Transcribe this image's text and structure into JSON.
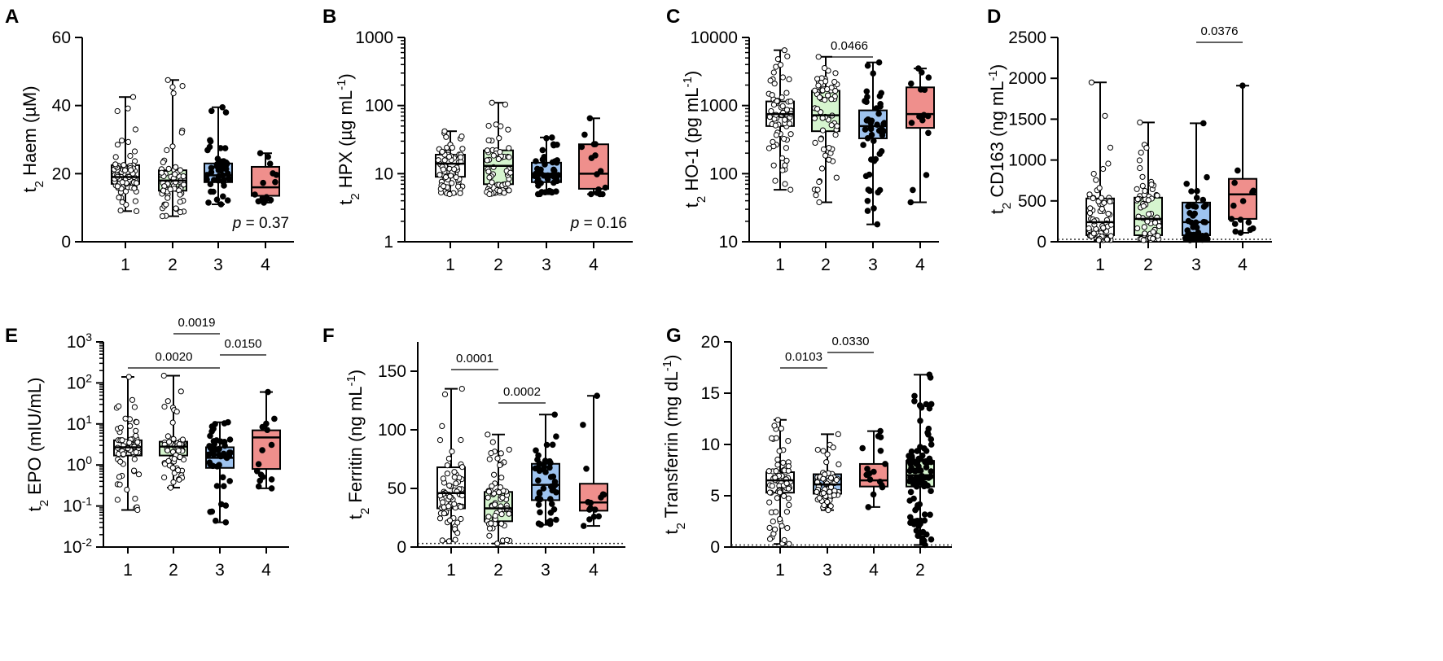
{
  "figure": {
    "colors": {
      "1": "#ffffff",
      "2": "#d6f5cf",
      "3": "#9ec3ef",
      "4": "#ef8f8c",
      "axis": "#000000"
    }
  },
  "chart_data": [
    {
      "panel": "A",
      "type": "box",
      "ylabel": {
        "pre": "t",
        "sub": "2",
        "post": " Haem (µM)"
      },
      "scale": "linear",
      "ylim": [
        0,
        60
      ],
      "yticks": [
        0,
        20,
        40,
        60
      ],
      "categories": [
        "1",
        "2",
        "3",
        "4"
      ],
      "groups": [
        {
          "name": "1",
          "min": 9,
          "q1": 17,
          "median": 19,
          "q3": 22.5,
          "max": 42.5,
          "n": 70,
          "filled": false
        },
        {
          "name": "2",
          "min": 7.5,
          "q1": 15,
          "median": 18,
          "q3": 21,
          "max": 47.5,
          "n": 65,
          "filled": false
        },
        {
          "name": "3",
          "min": 11,
          "q1": 17.5,
          "median": 19.5,
          "q3": 23,
          "max": 39.5,
          "n": 45,
          "filled": true
        },
        {
          "name": "4",
          "min": 11.5,
          "q1": 13.5,
          "median": 16,
          "q3": 22,
          "max": 26,
          "n": 13,
          "filled": true
        }
      ],
      "comparisons": [],
      "annotation": {
        "p_label": "p",
        "p_value": "= 0.37"
      }
    },
    {
      "panel": "B",
      "type": "box",
      "ylabel": {
        "pre": "t",
        "sub": "2",
        "post": " HPX (µg mL",
        "sup": "-1",
        "close": ")"
      },
      "scale": "log",
      "ylim": [
        1,
        1000
      ],
      "yticks": [
        1,
        10,
        100,
        1000
      ],
      "categories": [
        "1",
        "2",
        "3",
        "4"
      ],
      "groups": [
        {
          "name": "1",
          "min": 5,
          "q1": 9,
          "median": 14,
          "q3": 19,
          "max": 42,
          "n": 70,
          "filled": false
        },
        {
          "name": "2",
          "min": 5,
          "q1": 7,
          "median": 13,
          "q3": 22,
          "max": 110,
          "n": 65,
          "filled": false
        },
        {
          "name": "3",
          "min": 5,
          "q1": 7.5,
          "median": 10,
          "q3": 14.5,
          "max": 34,
          "n": 45,
          "filled": true
        },
        {
          "name": "4",
          "min": 5,
          "q1": 6,
          "median": 10,
          "q3": 27,
          "max": 65,
          "n": 13,
          "filled": true
        }
      ],
      "comparisons": [],
      "annotation": {
        "p_label": "p",
        "p_value": "= 0.16"
      }
    },
    {
      "panel": "C",
      "type": "box",
      "ylabel": {
        "pre": "t",
        "sub": "2",
        "post": " HO-1 (pg mL",
        "sup": "-1",
        "close": ")"
      },
      "scale": "log",
      "ylim": [
        10,
        10000
      ],
      "yticks": [
        10,
        100,
        1000,
        10000
      ],
      "categories": [
        "1",
        "2",
        "3",
        "4"
      ],
      "groups": [
        {
          "name": "1",
          "min": 58,
          "q1": 500,
          "median": 750,
          "q3": 1150,
          "max": 6500,
          "n": 70,
          "filled": false
        },
        {
          "name": "2",
          "min": 38,
          "q1": 420,
          "median": 720,
          "q3": 1650,
          "max": 5200,
          "n": 65,
          "filled": false
        },
        {
          "name": "3",
          "min": 18,
          "q1": 330,
          "median": 500,
          "q3": 850,
          "max": 4300,
          "n": 45,
          "filled": true
        },
        {
          "name": "4",
          "min": 38,
          "q1": 470,
          "median": 750,
          "q3": 1850,
          "max": 3500,
          "n": 13,
          "filled": true
        }
      ],
      "comparisons": [
        {
          "from": 1,
          "to": 2,
          "label": "0.0466",
          "level": 0
        }
      ],
      "annotation": null
    },
    {
      "panel": "D",
      "type": "box",
      "ylabel": {
        "pre": "t",
        "sub": "2",
        "post": " CD163 (ng mL",
        "sup": "-1",
        "close": ")"
      },
      "scale": "linear",
      "ylim": [
        0,
        2500
      ],
      "yticks": [
        0,
        500,
        1000,
        1500,
        2000,
        2500
      ],
      "categories": [
        "1",
        "2",
        "3",
        "4"
      ],
      "groups": [
        {
          "name": "1",
          "min": 20,
          "q1": 80,
          "median": 240,
          "q3": 530,
          "max": 1950,
          "n": 70,
          "filled": false
        },
        {
          "name": "2",
          "min": 20,
          "q1": 80,
          "median": 280,
          "q3": 540,
          "max": 1460,
          "n": 65,
          "filled": false
        },
        {
          "name": "3",
          "min": 20,
          "q1": 80,
          "median": 240,
          "q3": 480,
          "max": 1450,
          "n": 45,
          "filled": true
        },
        {
          "name": "4",
          "min": 110,
          "q1": 280,
          "median": 580,
          "q3": 770,
          "max": 1910,
          "n": 13,
          "filled": true
        }
      ],
      "comparisons": [
        {
          "from": 2,
          "to": 3,
          "label": "0.0376",
          "level": 0
        }
      ],
      "dotted_baseline": 30,
      "annotation": null
    },
    {
      "panel": "E",
      "type": "box",
      "ylabel": {
        "pre": "t",
        "sub": "2",
        "post": " EPO (mIU/mL)"
      },
      "scale": "log",
      "ylim": [
        0.01,
        1000
      ],
      "yticks": [
        0.01,
        0.1,
        1,
        10,
        100,
        1000
      ],
      "ytick_labels": [
        {
          "base": "10",
          "exp": "-2"
        },
        {
          "base": "10",
          "exp": "-1"
        },
        {
          "base": "10",
          "exp": "0"
        },
        {
          "base": "10",
          "exp": "1"
        },
        {
          "base": "10",
          "exp": "2"
        },
        {
          "base": "10",
          "exp": "3"
        }
      ],
      "categories": [
        "1",
        "2",
        "3",
        "4"
      ],
      "groups": [
        {
          "name": "1",
          "min": 0.08,
          "q1": 1.7,
          "median": 2.7,
          "q3": 4,
          "max": 140,
          "n": 70,
          "filled": false
        },
        {
          "name": "2",
          "min": 0.28,
          "q1": 1.7,
          "median": 2.8,
          "q3": 3.7,
          "max": 150,
          "n": 65,
          "filled": false
        },
        {
          "name": "3",
          "min": 0.04,
          "q1": 0.85,
          "median": 1.5,
          "q3": 2.7,
          "max": 11,
          "n": 45,
          "filled": true
        },
        {
          "name": "4",
          "min": 0.27,
          "q1": 0.8,
          "median": 4.7,
          "q3": 7,
          "max": 60,
          "n": 13,
          "filled": true
        }
      ],
      "comparisons": [
        {
          "from": 0,
          "to": 2,
          "label": "0.0020",
          "level": 0
        },
        {
          "from": 2,
          "to": 3,
          "label": "0.0150",
          "level": 1
        },
        {
          "from": 1,
          "to": 2,
          "label": "0.0019",
          "level": 2
        }
      ],
      "annotation": null
    },
    {
      "panel": "F",
      "type": "box",
      "ylabel": {
        "pre": "t",
        "sub": "2",
        "post": " Ferritin (ng mL",
        "sup": "-1",
        "close": ")"
      },
      "scale": "linear",
      "ylim": [
        0,
        175
      ],
      "yticks": [
        0,
        50,
        100,
        150
      ],
      "categories": [
        "1",
        "2",
        "3",
        "4"
      ],
      "groups": [
        {
          "name": "1",
          "min": 5,
          "q1": 33,
          "median": 46,
          "q3": 68,
          "max": 135,
          "n": 70,
          "filled": false
        },
        {
          "name": "2",
          "min": 3,
          "q1": 22,
          "median": 33,
          "q3": 47,
          "max": 96,
          "n": 65,
          "filled": false
        },
        {
          "name": "3",
          "min": 19,
          "q1": 40,
          "median": 53,
          "q3": 71,
          "max": 113,
          "n": 45,
          "filled": true
        },
        {
          "name": "4",
          "min": 18,
          "q1": 31,
          "median": 38,
          "q3": 54,
          "max": 129,
          "n": 13,
          "filled": true
        }
      ],
      "comparisons": [
        {
          "from": 1,
          "to": 2,
          "label": "0.0002",
          "level": 0
        },
        {
          "from": 0,
          "to": 1,
          "label": "0.0001",
          "level": 1
        }
      ],
      "dotted_baseline": 3,
      "annotation": null
    },
    {
      "panel": "G",
      "type": "box",
      "ylabel": {
        "pre": "t",
        "sub": "2",
        "post": " Transferrin (mg dL",
        "sup": "-1",
        "close": ")"
      },
      "scale": "linear",
      "ylim": [
        0,
        20
      ],
      "yticks": [
        0,
        5,
        10,
        15,
        20
      ],
      "categories": [
        "1",
        "3",
        "4",
        "2"
      ],
      "groups": [
        {
          "name": "1",
          "min": 0.3,
          "q1": 5.3,
          "median": 6.5,
          "q3": 7.3,
          "max": 12.4,
          "n": 70,
          "filled": false
        },
        {
          "name": "3",
          "min": 3.6,
          "q1": 5.2,
          "median": 6.1,
          "q3": 7.1,
          "max": 11,
          "n": 65,
          "filled": false
        },
        {
          "name": "4",
          "min": 3.9,
          "q1": 5.9,
          "median": 6.5,
          "q3": 8.1,
          "max": 11.3,
          "n": 14,
          "filled": true
        },
        {
          "name": "2",
          "min": 0.2,
          "q1": 5.9,
          "median": 7,
          "q3": 8.4,
          "max": 16.8,
          "n": 100,
          "filled": true
        }
      ],
      "comparisons": [
        {
          "from": 0,
          "to": 1,
          "label": "0.0103",
          "level": 0
        },
        {
          "from": 1,
          "to": 2,
          "label": "0.0330",
          "level": 1
        }
      ],
      "dotted_baseline": 0.2,
      "annotation": null
    }
  ]
}
